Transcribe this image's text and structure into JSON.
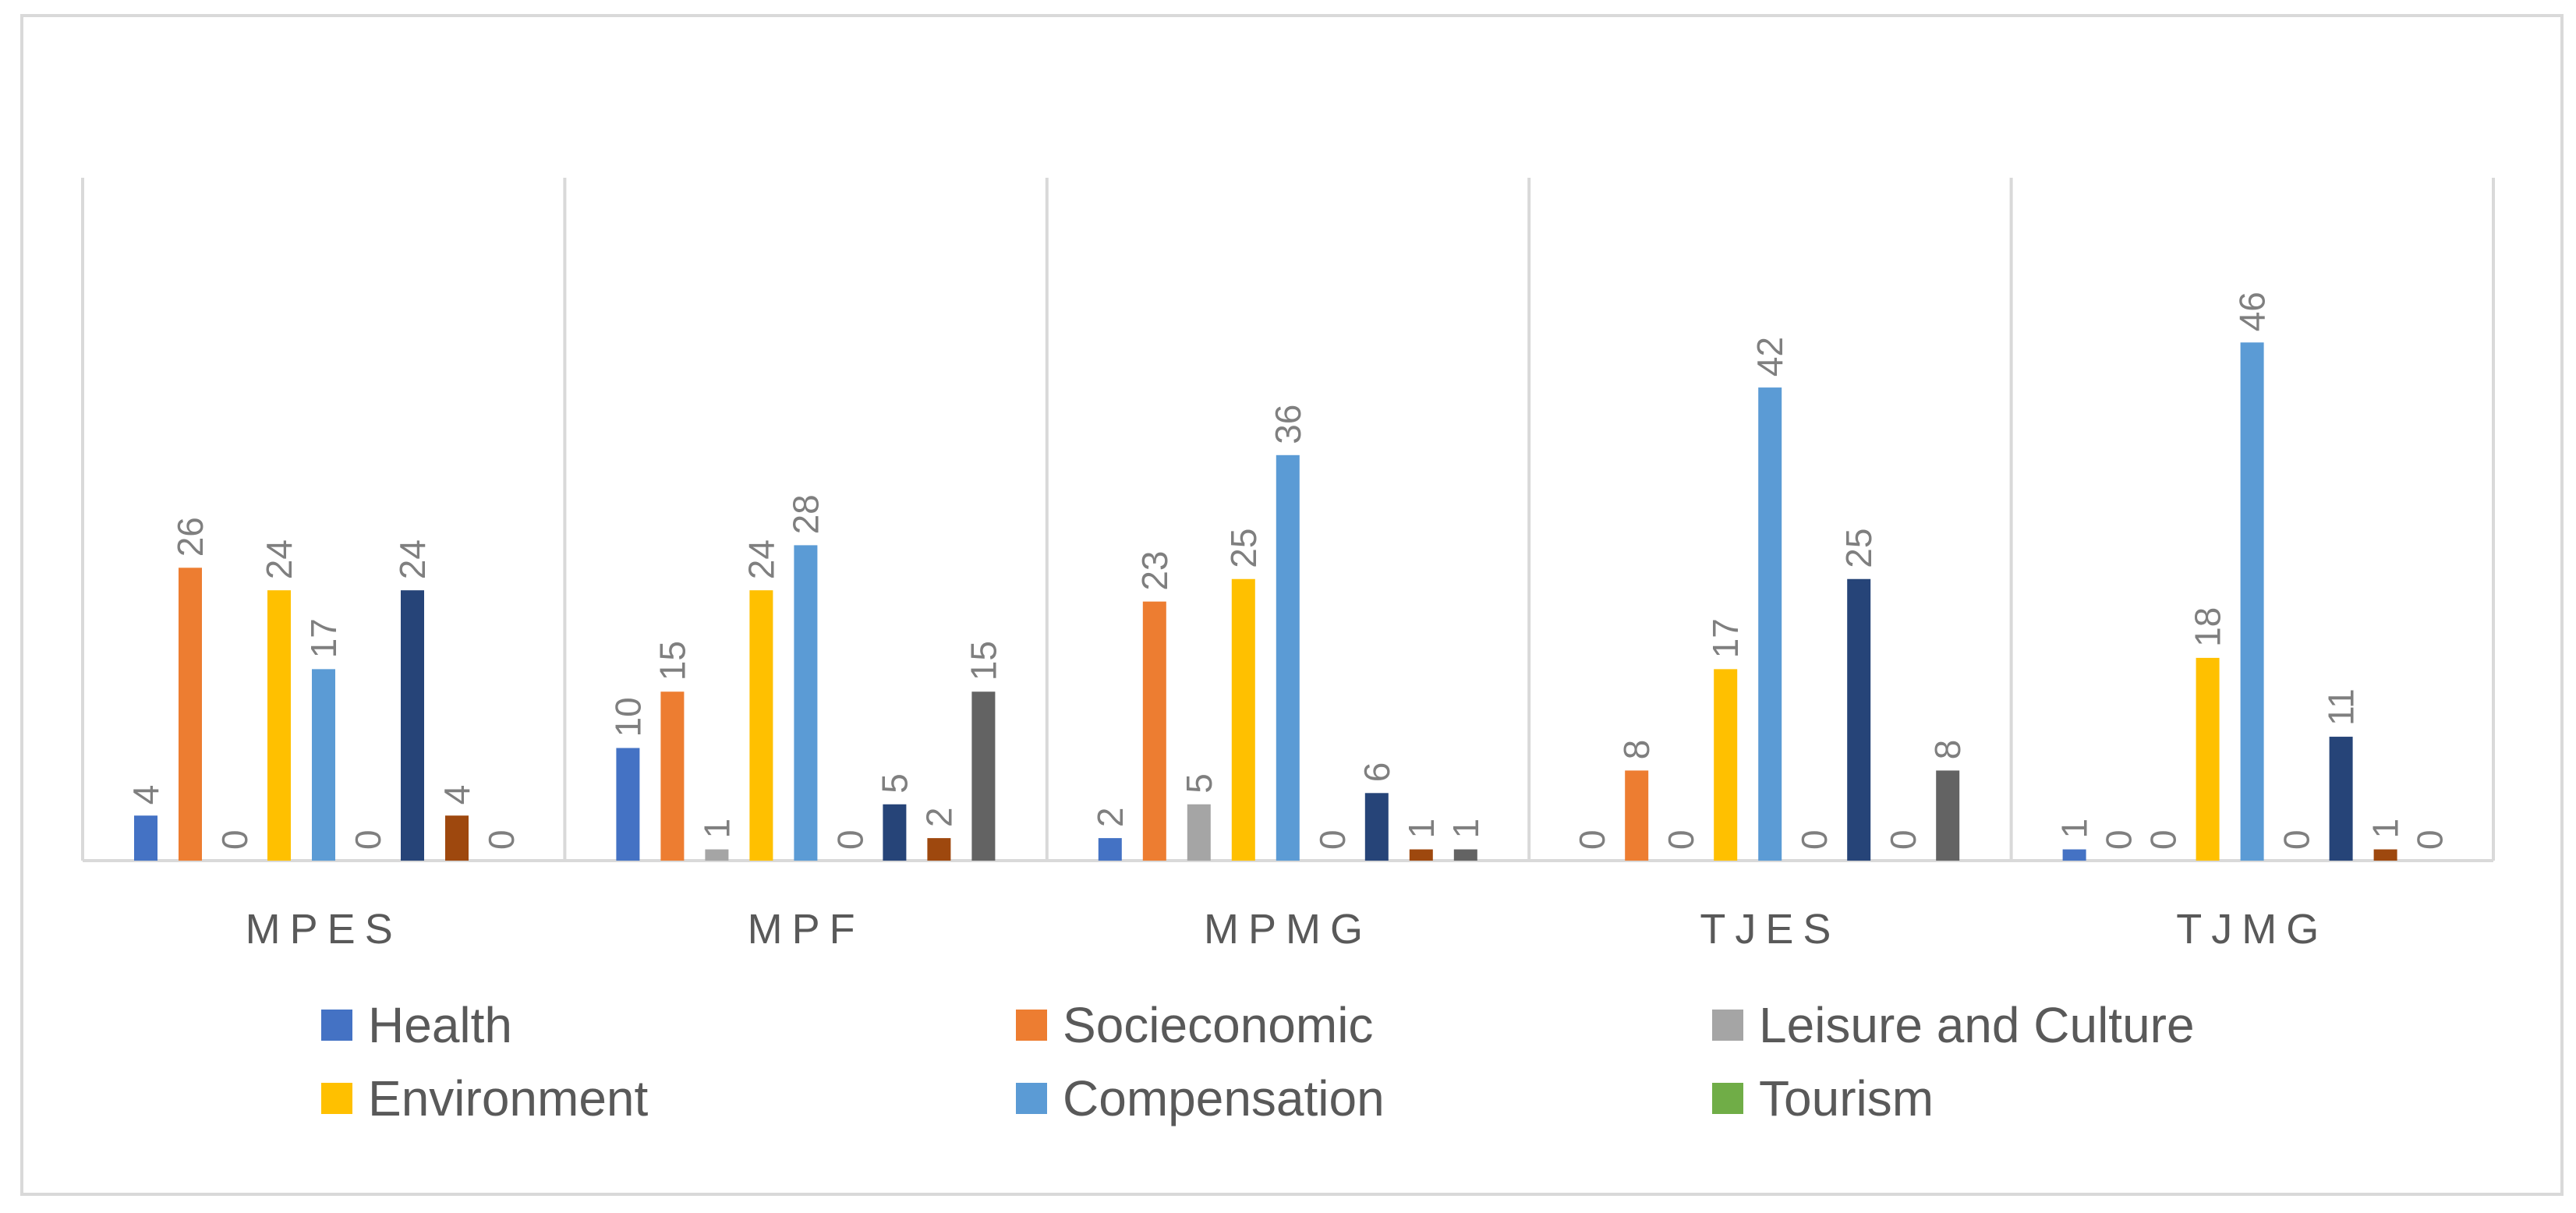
{
  "chart_data": {
    "type": "bar",
    "title": "",
    "xlabel": "",
    "ylabel": "",
    "ylim": [
      0,
      50
    ],
    "grid": false,
    "legend_position": "bottom",
    "categories": [
      "MPES",
      "MPF",
      "MPMG",
      "TJES",
      "TJMG"
    ],
    "series": [
      {
        "name": "Health",
        "color": "#4472c4",
        "values": [
          4,
          10,
          2,
          0,
          1
        ]
      },
      {
        "name": "Socieconomic",
        "color": "#ed7d31",
        "values": [
          26,
          15,
          23,
          8,
          0
        ]
      },
      {
        "name": "Leisure and Culture",
        "color": "#a5a5a5",
        "values": [
          0,
          1,
          5,
          0,
          0
        ]
      },
      {
        "name": "Environment",
        "color": "#ffc000",
        "values": [
          24,
          24,
          25,
          17,
          18
        ]
      },
      {
        "name": "Compensation",
        "color": "#5b9bd5",
        "values": [
          17,
          28,
          36,
          42,
          46
        ]
      },
      {
        "name": "Tourism",
        "color": "#70ad47",
        "values": [
          0,
          0,
          0,
          0,
          0
        ]
      },
      {
        "name": "",
        "color": "#264478",
        "values": [
          24,
          5,
          6,
          25,
          11
        ]
      },
      {
        "name": "",
        "color": "#9e480e",
        "values": [
          4,
          2,
          1,
          0,
          1
        ]
      },
      {
        "name": "",
        "color": "#636363",
        "values": [
          0,
          15,
          1,
          8,
          0
        ]
      }
    ],
    "legend_visible": [
      "Health",
      "Socieconomic",
      "Leisure and Culture",
      "Environment",
      "Compensation",
      "Tourism"
    ]
  }
}
